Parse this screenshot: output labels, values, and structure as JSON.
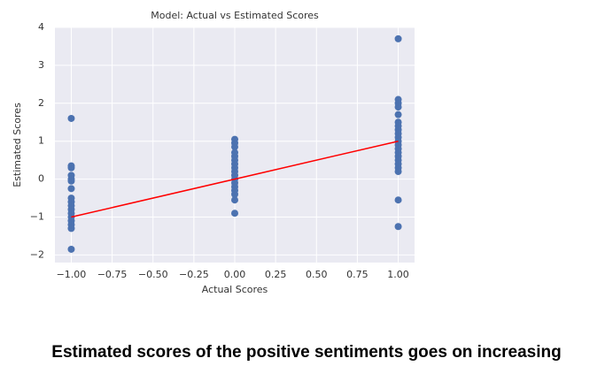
{
  "chart_data": {
    "type": "scatter",
    "title": "Model: Actual vs Estimated Scores",
    "xlabel": "Actual Scores",
    "ylabel": "Estimated Scores",
    "xlim": [
      -1.1,
      1.1
    ],
    "ylim": [
      -2.2,
      4.0
    ],
    "xticks": [
      {
        "value": -1,
        "label": "−1.00"
      },
      {
        "value": -0.75,
        "label": "−0.75"
      },
      {
        "value": -0.5,
        "label": "−0.50"
      },
      {
        "value": -0.25,
        "label": "−0.25"
      },
      {
        "value": 0,
        "label": "0.00"
      },
      0.25,
      {
        "value": 0.5,
        "label": "0.50"
      },
      0.75,
      {
        "value": 1,
        "label": "1.00"
      }
    ],
    "yticks": [
      {
        "value": -2,
        "label": "−2"
      },
      {
        "value": -1,
        "label": "−1"
      },
      0,
      1,
      2,
      3,
      4
    ],
    "grid": true,
    "series": [
      {
        "color": "#4c72b0",
        "x": [
          -1,
          -1,
          -1,
          -1,
          -1,
          -1,
          -1,
          -1,
          -1,
          -1,
          -1,
          -1,
          -1,
          -1,
          -1,
          -1,
          -1,
          0,
          0,
          0,
          0,
          0,
          0,
          0,
          0,
          0,
          0,
          0,
          0,
          0,
          0,
          0,
          0,
          0,
          1,
          1,
          1,
          1,
          1,
          1,
          1,
          1,
          1,
          1,
          1,
          1,
          1,
          1,
          1,
          1,
          1,
          1,
          1,
          1,
          1
        ],
        "y": [
          1.6,
          0.35,
          0.3,
          0.1,
          0.0,
          -0.05,
          -0.25,
          -0.5,
          -0.6,
          -0.7,
          -0.8,
          -0.9,
          -1.0,
          -1.1,
          -1.2,
          -1.3,
          -1.85,
          1.05,
          0.95,
          0.85,
          0.7,
          0.6,
          0.5,
          0.4,
          0.3,
          0.2,
          0.1,
          0.0,
          -0.1,
          -0.2,
          -0.3,
          -0.4,
          -0.55,
          -0.9,
          3.7,
          2.1,
          2.0,
          1.9,
          1.7,
          1.5,
          1.4,
          1.3,
          1.2,
          1.1,
          1.0,
          0.9,
          0.8,
          0.7,
          0.6,
          0.5,
          0.4,
          0.3,
          0.2,
          -0.55,
          -1.25
        ]
      }
    ],
    "fit": {
      "color": "#ff0000",
      "x": [
        -1,
        1
      ],
      "y": [
        -1,
        1
      ]
    }
  },
  "caption": "Estimated scores of the positive sentiments goes on increasing"
}
